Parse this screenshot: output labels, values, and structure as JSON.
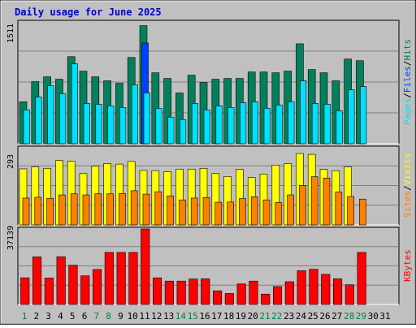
{
  "chart_data": {
    "type": "bar",
    "title": "Daily usage for June 2025",
    "categories": [
      "1",
      "2",
      "3",
      "4",
      "5",
      "6",
      "7",
      "8",
      "9",
      "10",
      "11",
      "12",
      "13",
      "14",
      "15",
      "16",
      "17",
      "18",
      "19",
      "20",
      "21",
      "22",
      "23",
      "24",
      "25",
      "26",
      "27",
      "28",
      "29",
      "30",
      "31"
    ],
    "weekend_days": [
      "1",
      "7",
      "8",
      "14",
      "15",
      "21",
      "22",
      "28",
      "29"
    ],
    "panels": [
      {
        "name": "requests",
        "ymax_label": "1511",
        "ymax": 1511,
        "series": [
          {
            "name": "Hits",
            "color": "#00805c",
            "values": [
              520,
              770,
              830,
              800,
              1080,
              900,
              830,
              780,
              750,
              1070,
              1465,
              880,
              810,
              630,
              850,
              760,
              800,
              810,
              810,
              890,
              890,
              880,
              900,
              1240,
              920,
              880,
              780,
              1050,
              1030,
              0,
              0
            ]
          },
          {
            "name": "Files",
            "color": "#0040ff",
            "values": [
              0,
              0,
              0,
              0,
              0,
              0,
              0,
              0,
              0,
              0,
              1250,
              0,
              0,
              0,
              0,
              0,
              0,
              0,
              0,
              0,
              0,
              0,
              0,
              0,
              0,
              0,
              0,
              0,
              0,
              0,
              0
            ]
          },
          {
            "name": "Pages",
            "color": "#00e0ff",
            "values": [
              420,
              580,
              720,
              620,
              990,
              500,
              490,
              470,
              450,
              730,
              630,
              440,
              330,
              300,
              500,
              420,
              470,
              450,
              510,
              520,
              440,
              480,
              520,
              780,
              500,
              490,
              410,
              670,
              710,
              0,
              0
            ]
          }
        ]
      },
      {
        "name": "visits",
        "ymax_label": "293",
        "ymax": 293,
        "series": [
          {
            "name": "Visits",
            "color": "#ffff00",
            "values": [
              213,
              220,
              215,
              245,
              242,
              195,
              223,
              233,
              231,
              241,
              207,
              206,
              202,
              212,
              212,
              215,
              195,
              184,
              211,
              180,
              193,
              227,
              233,
              271,
              268,
              211,
              206,
              220,
              0,
              0,
              0
            ]
          },
          {
            "name": "Sites",
            "color": "#ff8000",
            "values": [
              102,
              105,
              101,
              114,
              118,
              114,
              118,
              118,
              119,
              130,
              117,
              126,
              110,
              95,
              102,
              104,
              86,
              87,
              100,
              107,
              95,
              85,
              114,
              150,
              183,
              178,
              125,
              108,
              98,
              0,
              0
            ]
          }
        ]
      },
      {
        "name": "kbytes",
        "ymax_label": "37139",
        "ymax": 37139,
        "series": [
          {
            "name": "KBytes",
            "color": "#ff0000",
            "values": [
              13100,
              23400,
              13000,
              23500,
              19300,
              14100,
              17200,
              25600,
              25600,
              25600,
              37139,
              13100,
              11500,
              11500,
              12500,
              12600,
              6700,
              5400,
              10100,
              11500,
              5100,
              8800,
              11200,
              16600,
              17300,
              14800,
              12600,
              9700,
              25600,
              0,
              0
            ]
          }
        ]
      }
    ],
    "legend": {
      "requests": [
        {
          "label": "Hits",
          "color": "#00805c"
        },
        {
          "label": "Files",
          "color": "#0040ff"
        },
        {
          "label": "Pages",
          "color": "#00e0ff"
        }
      ],
      "visits": [
        {
          "label": "Visits",
          "color": "#ffff00"
        },
        {
          "label": "Sites",
          "color": "#ff8000"
        }
      ],
      "kbytes": [
        {
          "label": "KBytes",
          "color": "#ff0000"
        }
      ]
    },
    "separator": "/",
    "colors": {
      "background": "#c0c0c0",
      "title": "#0000cc",
      "weekday_label": "#000000",
      "weekend_label": "#008040",
      "gridline": "#808080"
    }
  }
}
